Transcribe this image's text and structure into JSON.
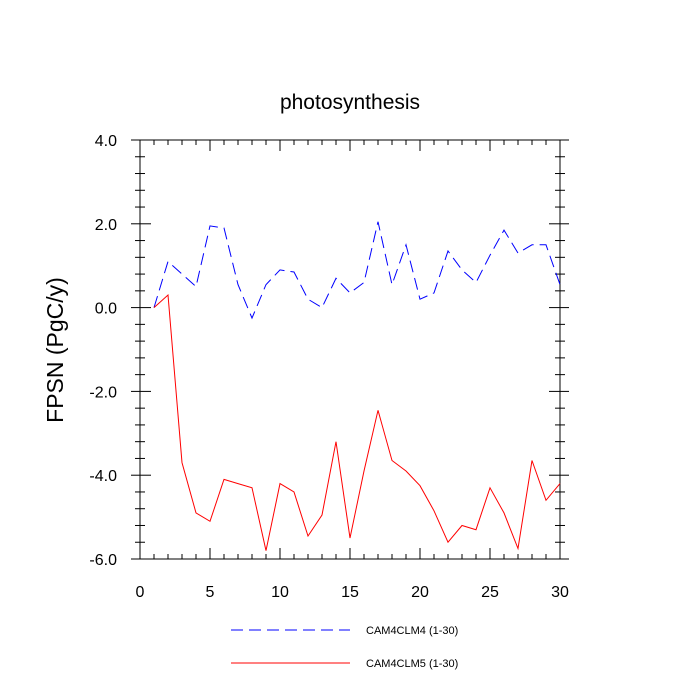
{
  "chart_data": {
    "type": "line",
    "title": "photosynthesis",
    "xlabel": "",
    "ylabel": "FPSN  (PgC/y)",
    "xlim": [
      0,
      30
    ],
    "ylim": [
      -6.0,
      4.0
    ],
    "x_ticks": [
      0,
      5,
      10,
      15,
      20,
      25,
      30
    ],
    "x_tick_labels": [
      "0",
      "5",
      "10",
      "15",
      "20",
      "25",
      "30"
    ],
    "y_ticks": [
      -6.0,
      -4.0,
      -2.0,
      0.0,
      2.0,
      4.0
    ],
    "y_tick_labels": [
      "-6.0",
      "-4.0",
      "-2.0",
      "0.0",
      "2.0",
      "4.0"
    ],
    "x": [
      1,
      2,
      3,
      4,
      5,
      6,
      7,
      8,
      9,
      10,
      11,
      12,
      13,
      14,
      15,
      16,
      17,
      18,
      19,
      20,
      21,
      22,
      23,
      24,
      25,
      26,
      27,
      28,
      29,
      30
    ],
    "series": [
      {
        "name": "CAM4CLM4 (1-30)",
        "color": "#0000ff",
        "dash": "dashed",
        "values": [
          0.0,
          1.1,
          0.8,
          0.5,
          1.95,
          1.9,
          0.55,
          -0.25,
          0.55,
          0.9,
          0.85,
          0.2,
          0.0,
          0.7,
          0.35,
          0.6,
          2.05,
          0.55,
          1.5,
          0.2,
          0.35,
          1.35,
          0.9,
          0.6,
          1.25,
          1.85,
          1.3,
          1.5,
          1.5,
          0.55
        ]
      },
      {
        "name": "CAM4CLM5 (1-30)",
        "color": "#ff0000",
        "dash": "solid",
        "values": [
          0.0,
          0.3,
          -3.7,
          -4.9,
          -5.1,
          -4.1,
          -4.2,
          -4.3,
          -5.8,
          -4.2,
          -4.4,
          -5.45,
          -4.95,
          -3.2,
          -5.5,
          -3.9,
          -2.45,
          -3.65,
          -3.9,
          -4.25,
          -4.85,
          -5.6,
          -5.2,
          -5.3,
          -4.3,
          -4.9,
          -5.75,
          -3.65,
          -4.6,
          -4.2
        ]
      }
    ],
    "legend_position": "bottom"
  }
}
